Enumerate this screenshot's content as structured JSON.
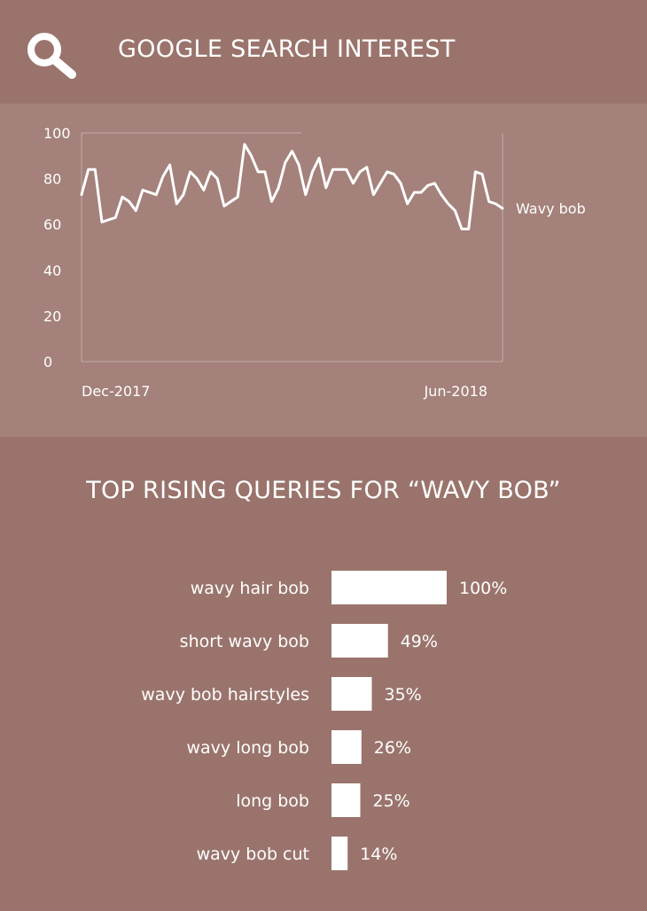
{
  "header": {
    "title": "GOOGLE SEARCH INTEREST",
    "icon": "search-icon"
  },
  "colors": {
    "background": "#9a746c",
    "panel": "#a4817a",
    "line": "#ffffff",
    "text": "#ffffff"
  },
  "chart_data": [
    {
      "type": "line",
      "title": "",
      "xlabel": "",
      "ylabel": "",
      "ylim": [
        0,
        100
      ],
      "yticks": [
        0,
        20,
        40,
        60,
        80,
        100
      ],
      "xticks": [
        "Dec-2017",
        "Jun-2018"
      ],
      "grid": false,
      "series": [
        {
          "name": "Wavy bob",
          "values": [
            73,
            84,
            84,
            61,
            62,
            63,
            72,
            70,
            66,
            75,
            74,
            73,
            81,
            86,
            69,
            73,
            83,
            80,
            75,
            83,
            80,
            68,
            70,
            72,
            95,
            90,
            83,
            83,
            70,
            76,
            87,
            92,
            86,
            73,
            83,
            89,
            76,
            84,
            84,
            84,
            78,
            83,
            85,
            73,
            78,
            83,
            82,
            78,
            69,
            74,
            74,
            77,
            78,
            73,
            69,
            66,
            58,
            58,
            83,
            82,
            70,
            69,
            67
          ]
        }
      ]
    },
    {
      "type": "bar",
      "title": "TOP RISING QUERIES FOR “WAVY BOB”",
      "orientation": "horizontal",
      "categories": [
        "wavy hair bob",
        "short wavy bob",
        "wavy bob hairstyles",
        "wavy long bob",
        "long bob",
        "wavy bob cut"
      ],
      "values": [
        100,
        49,
        35,
        26,
        25,
        14
      ],
      "value_labels": [
        "100%",
        "49%",
        "35%",
        "26%",
        "25%",
        "14%"
      ],
      "xlim": [
        0,
        100
      ]
    }
  ]
}
